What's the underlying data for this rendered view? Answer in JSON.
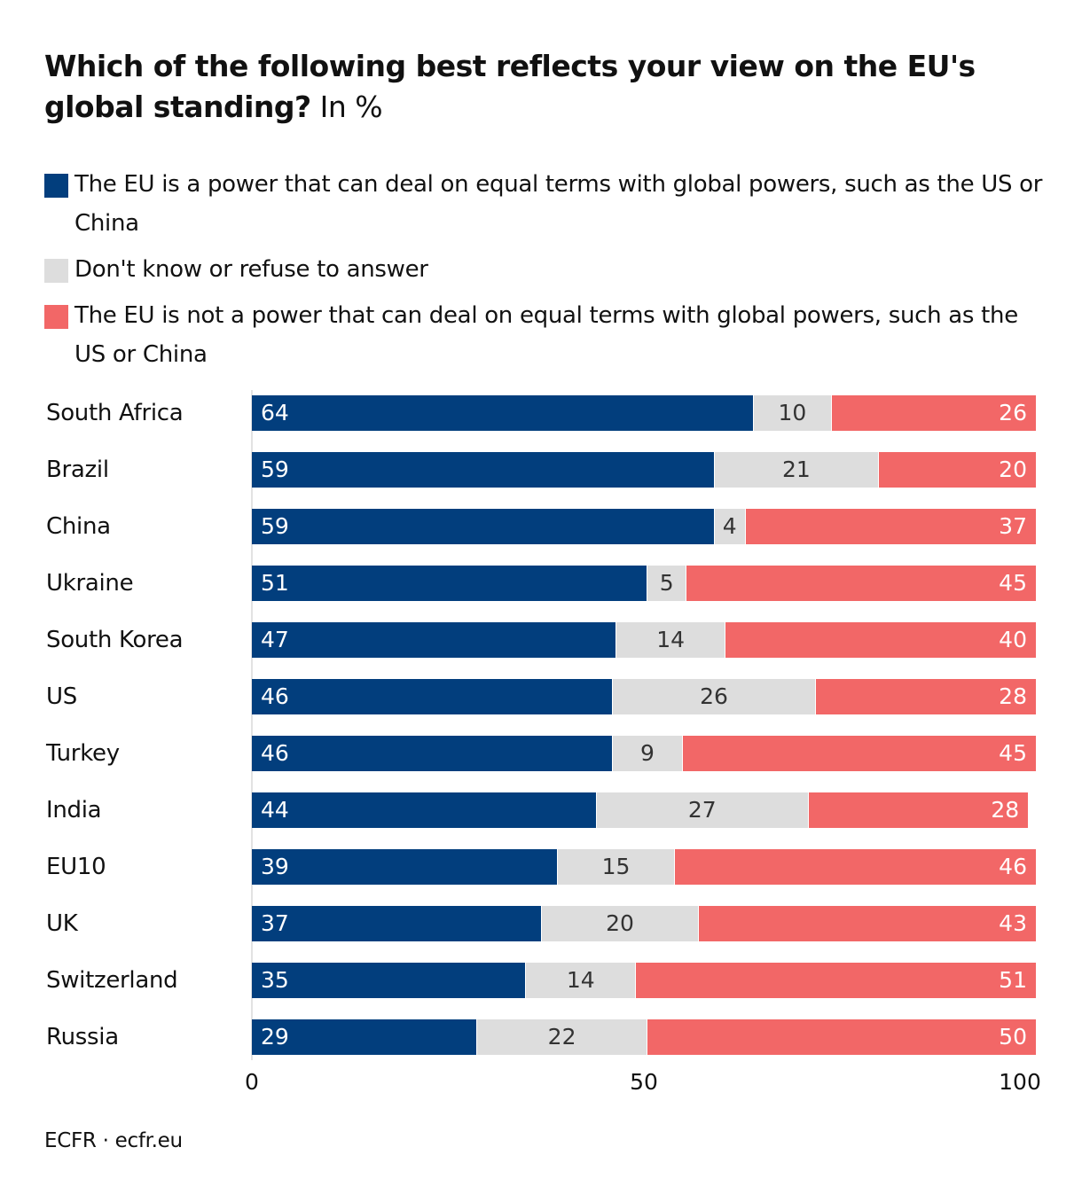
{
  "title_bold": "Which of the following best reflects your view on the EU's global standing?",
  "title_unit": " In %",
  "source": "ECFR · ecfr.eu",
  "colors": {
    "equal": "#023e7d",
    "dontknow": "#dddddd",
    "notequal": "#f26767"
  },
  "chart_data": {
    "type": "bar",
    "orientation": "horizontal",
    "stacked": true,
    "title": "Which of the following best reflects your view on the EU's global standing? In %",
    "legend": [
      "The EU is a power that can deal on equal terms with global powers, such as the US or China",
      "Don't know or refuse to answer",
      "The EU is not a power that can deal on equal terms with global powers, such as the US or China"
    ],
    "categories": [
      "South Africa",
      "Brazil",
      "China",
      "Ukraine",
      "South Korea",
      "US",
      "Turkey",
      "India",
      "EU10",
      "UK",
      "Switzerland",
      "Russia"
    ],
    "series": [
      {
        "name": "The EU is a power that can deal on equal terms with global powers, such as the US or China",
        "values": [
          64,
          59,
          59,
          51,
          47,
          46,
          46,
          44,
          39,
          37,
          35,
          29
        ]
      },
      {
        "name": "Don't know or refuse to answer",
        "values": [
          10,
          21,
          4,
          5,
          14,
          26,
          9,
          27,
          15,
          20,
          14,
          22
        ]
      },
      {
        "name": "The EU is not a power that can deal on equal terms with global powers, such as the US or China",
        "values": [
          26,
          20,
          37,
          45,
          40,
          28,
          45,
          28,
          46,
          43,
          51,
          50
        ]
      }
    ],
    "xlim": [
      0,
      100
    ],
    "xticks": [
      "0",
      "50",
      "100"
    ],
    "legend_position": "top"
  }
}
